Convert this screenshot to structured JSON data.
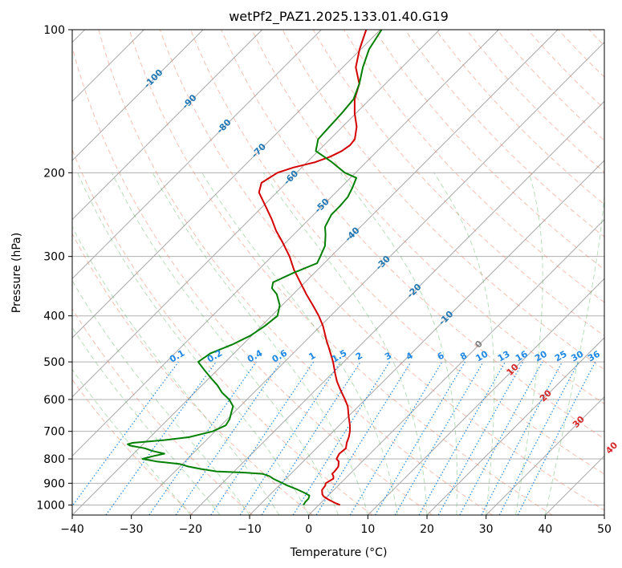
{
  "chart_data": {
    "type": "line",
    "title": "wetPf2_PAZ1.2025.133.01.40.G19",
    "xlabel": "Temperature (°C)",
    "ylabel": "Pressure (hPa)",
    "xlim": [
      -40,
      50
    ],
    "ylim": [
      1050,
      100
    ],
    "y_scale": "log",
    "x_ticks": [
      "−40",
      "−30",
      "−20",
      "−10",
      "0",
      "10",
      "20",
      "30",
      "40",
      "50"
    ],
    "y_ticks": [
      "100",
      "200",
      "300",
      "400",
      "500",
      "600",
      "700",
      "800",
      "900",
      "1000"
    ],
    "grid": true,
    "skew": "45 degrees",
    "background_lines": [
      "dry adiabats",
      "moist adiabats",
      "mixing ratio lines",
      "isotherms"
    ],
    "mixing_ratio_labels": [
      "0.1",
      "0.2",
      "0.4",
      "0.6",
      "1",
      "1.5",
      "2",
      "3",
      "4",
      "6",
      "8",
      "10",
      "13",
      "16",
      "20",
      "25",
      "30",
      "36"
    ],
    "isotherm_labels": [
      "-100",
      "-90",
      "-80",
      "-70",
      "-60",
      "-50",
      "-40",
      "-30",
      "-20",
      "-10",
      "0",
      "10",
      "20",
      "30",
      "40"
    ],
    "series": [
      {
        "color": "#d40000",
        "pressure": [
          1000,
          990,
          975,
          960,
          950,
          930,
          910,
          900,
          880,
          870,
          860,
          850,
          830,
          810,
          800,
          780,
          760,
          740,
          720,
          700,
          680,
          650,
          620,
          600,
          575,
          550,
          530,
          500,
          470,
          450,
          420,
          400,
          380,
          360,
          340,
          320,
          300,
          280,
          265,
          250,
          235,
          220,
          210,
          200,
          195,
          190,
          185,
          180,
          175,
          170,
          160,
          150,
          140,
          130,
          120,
          110,
          100
        ],
        "temperature": [
          3.6,
          2.4,
          0.8,
          -0.6,
          -1.2,
          -2.0,
          -2.2,
          -2.5,
          -2.0,
          -2.4,
          -3.0,
          -3.0,
          -3.2,
          -4.0,
          -4.8,
          -5.2,
          -5.0,
          -5.8,
          -6.4,
          -7.2,
          -8.2,
          -10.0,
          -11.8,
          -13.4,
          -15.6,
          -17.8,
          -19.4,
          -21.8,
          -24.6,
          -26.6,
          -29.6,
          -32.0,
          -34.8,
          -37.8,
          -40.8,
          -44.0,
          -47.0,
          -50.6,
          -53.6,
          -56.4,
          -59.6,
          -63.0,
          -64.2,
          -63.2,
          -61.4,
          -58.6,
          -57.0,
          -56.0,
          -55.6,
          -55.8,
          -57.6,
          -60.2,
          -62.6,
          -64.4,
          -67.8,
          -70.2,
          -72.4
        ]
      },
      {
        "color": "#008000",
        "pressure": [
          1000,
          985,
          970,
          955,
          940,
          925,
          910,
          895,
          880,
          870,
          860,
          855,
          850,
          840,
          830,
          820,
          810,
          800,
          790,
          780,
          770,
          760,
          750,
          745,
          740,
          730,
          720,
          700,
          680,
          660,
          640,
          620,
          600,
          580,
          560,
          540,
          520,
          500,
          480,
          460,
          440,
          420,
          400,
          380,
          360,
          350,
          340,
          325,
          310,
          300,
          285,
          270,
          260,
          245,
          235,
          225,
          215,
          205,
          200,
          190,
          180,
          170,
          160,
          150,
          140,
          130,
          120,
          110,
          100
        ],
        "temperature": [
          -2.6,
          -2.8,
          -2.8,
          -3.2,
          -4.8,
          -6.6,
          -8.6,
          -10.4,
          -12.2,
          -13.2,
          -14.8,
          -18.0,
          -23.0,
          -26.0,
          -28.6,
          -30.4,
          -34.8,
          -37.6,
          -36.4,
          -34.8,
          -37.2,
          -39.0,
          -42.0,
          -42.6,
          -42.0,
          -37.0,
          -33.4,
          -30.4,
          -29.2,
          -29.6,
          -30.4,
          -31.2,
          -33.0,
          -35.4,
          -37.4,
          -39.8,
          -42.2,
          -44.6,
          -44.0,
          -41.8,
          -40.2,
          -39.4,
          -39.0,
          -40.4,
          -42.8,
          -44.6,
          -45.4,
          -43.6,
          -41.2,
          -41.8,
          -42.8,
          -44.6,
          -46.0,
          -47.0,
          -47.0,
          -47.2,
          -48.0,
          -49.0,
          -51.8,
          -55.8,
          -60.4,
          -62.0,
          -62.2,
          -62.4,
          -62.8,
          -64.4,
          -66.6,
          -68.6,
          -69.8
        ]
      }
    ]
  }
}
